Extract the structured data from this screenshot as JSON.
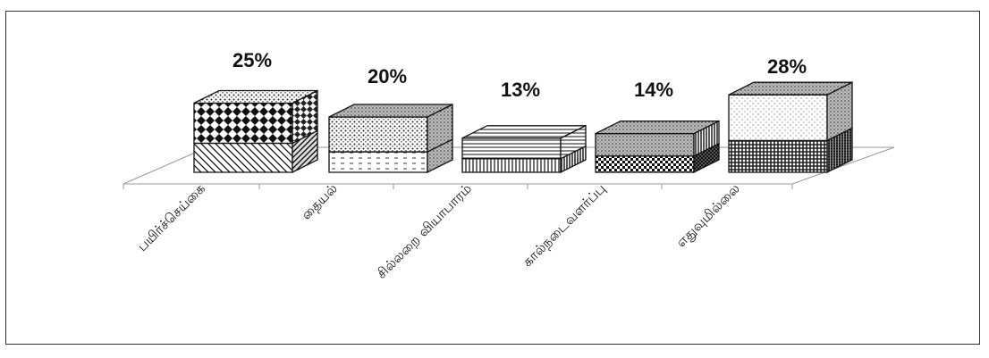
{
  "chart_data": {
    "type": "bar",
    "title": "",
    "xlabel": "",
    "ylabel": "",
    "categories": [
      "பயிர்ச்செய்கை",
      "தையல்",
      "சில்லறை வியாபாரம்",
      "கால்நடைவளர்ப்பு",
      "எதுவுமில்லை"
    ],
    "values": [
      25,
      20,
      13,
      14,
      28
    ],
    "data_labels": [
      "25%",
      "20%",
      "13%",
      "14%",
      "28%"
    ],
    "unit": "%",
    "grid": false,
    "legend": "none",
    "style": "3d-stacked-box-with-pattern-fills",
    "colors": {
      "ink": "#111111",
      "fill": "#ffffff",
      "frame": "#333333"
    }
  }
}
